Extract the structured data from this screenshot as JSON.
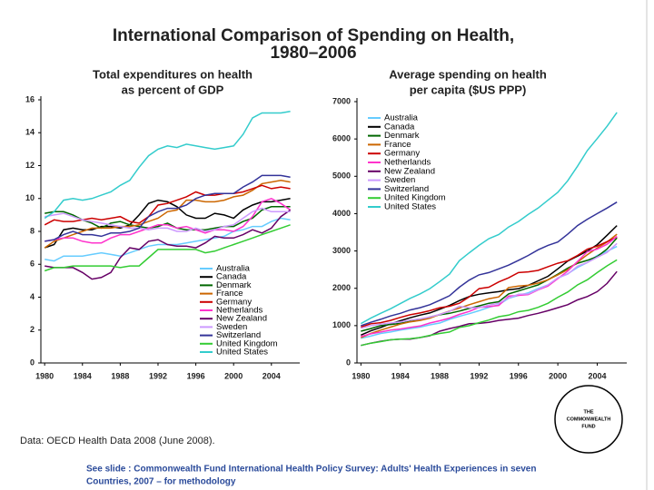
{
  "slide": {
    "title": [
      "International Comparison of Spending on Health,",
      "1980–2006"
    ],
    "source": "Data: OECD Health Data 2008 (June 2008).",
    "footnote": [
      "See slide : Commonwealth Fund International Health Policy Survey: Adults' Health Experiences in seven",
      "Countries, 2007 – for methodology"
    ],
    "logo": [
      "THE",
      "COMMONWEALTH",
      "FUND"
    ]
  },
  "chart_data": [
    {
      "type": "line",
      "title": [
        "Total expenditures on health",
        "as percent of GDP"
      ],
      "x": [
        1980,
        1981,
        1982,
        1983,
        1984,
        1985,
        1986,
        1987,
        1988,
        1989,
        1990,
        1991,
        1992,
        1993,
        1994,
        1995,
        1996,
        1997,
        1998,
        1999,
        2000,
        2001,
        2002,
        2003,
        2004,
        2005,
        2006
      ],
      "xlim": [
        1979.6,
        2007
      ],
      "xticks": [
        1980,
        1984,
        1988,
        1992,
        1996,
        2000,
        2004
      ],
      "ylim": [
        0,
        16
      ],
      "yticks": [
        0,
        2,
        4,
        6,
        8,
        10,
        12,
        14,
        16
      ],
      "legend": "lower right",
      "series": [
        {
          "name": "Australia",
          "color": "#66ccff",
          "values": [
            6.3,
            6.2,
            6.5,
            6.5,
            6.5,
            6.6,
            6.7,
            6.6,
            6.5,
            6.7,
            6.9,
            7.1,
            7.2,
            7.2,
            7.2,
            7.3,
            7.4,
            7.5,
            7.6,
            7.7,
            8.0,
            8.1,
            8.3,
            8.3,
            8.6,
            8.8,
            8.7
          ]
        },
        {
          "name": "Canada",
          "color": "#000000",
          "values": [
            7.0,
            7.2,
            8.1,
            8.2,
            8.1,
            8.1,
            8.3,
            8.3,
            8.2,
            8.4,
            9.0,
            9.7,
            9.9,
            9.8,
            9.5,
            9.0,
            8.8,
            8.8,
            9.1,
            9.0,
            8.8,
            9.3,
            9.6,
            9.8,
            9.8,
            9.9,
            10.0
          ]
        },
        {
          "name": "Denmark",
          "color": "#006600",
          "values": [
            9.1,
            9.2,
            9.2,
            9.0,
            8.7,
            8.5,
            8.2,
            8.5,
            8.6,
            8.4,
            8.3,
            8.2,
            8.3,
            8.5,
            8.2,
            8.1,
            8.1,
            8.1,
            8.2,
            8.3,
            8.3,
            8.6,
            8.8,
            9.3,
            9.5,
            9.5,
            9.5
          ]
        },
        {
          "name": "France",
          "color": "#cc6600",
          "values": [
            7.0,
            7.4,
            7.6,
            7.8,
            8.0,
            8.2,
            8.2,
            8.2,
            8.3,
            8.3,
            8.4,
            8.6,
            8.8,
            9.2,
            9.3,
            9.9,
            9.9,
            9.8,
            9.8,
            9.9,
            10.1,
            10.2,
            10.5,
            10.9,
            11.0,
            11.1,
            11.0
          ]
        },
        {
          "name": "Germany",
          "color": "#cc0000",
          "values": [
            8.4,
            8.7,
            8.6,
            8.6,
            8.7,
            8.8,
            8.7,
            8.8,
            8.9,
            8.6,
            8.5,
            8.9,
            9.6,
            9.7,
            9.9,
            10.1,
            10.4,
            10.2,
            10.2,
            10.3,
            10.3,
            10.4,
            10.6,
            10.8,
            10.6,
            10.7,
            10.6
          ]
        },
        {
          "name": "Netherlands",
          "color": "#ff33cc",
          "values": [
            7.4,
            7.5,
            7.6,
            7.6,
            7.4,
            7.3,
            7.3,
            7.6,
            7.8,
            7.8,
            8.0,
            8.2,
            8.4,
            8.4,
            8.2,
            8.3,
            8.1,
            7.9,
            8.1,
            8.1,
            8.0,
            8.3,
            8.9,
            9.8,
            10.0,
            9.7,
            9.3
          ]
        },
        {
          "name": "New Zealand",
          "color": "#660066",
          "values": [
            5.9,
            5.8,
            5.8,
            5.8,
            5.5,
            5.1,
            5.2,
            5.5,
            6.4,
            7.0,
            6.9,
            7.4,
            7.5,
            7.2,
            7.1,
            7.1,
            7.0,
            7.3,
            7.7,
            7.6,
            7.6,
            7.8,
            8.1,
            7.9,
            8.2,
            8.9,
            9.3
          ]
        },
        {
          "name": "Sweden",
          "color": "#cc99ff",
          "values": [
            8.9,
            9.0,
            9.1,
            8.9,
            8.7,
            8.6,
            8.5,
            8.4,
            8.3,
            8.2,
            8.2,
            8.1,
            8.2,
            8.2,
            8.0,
            8.0,
            8.2,
            8.0,
            8.1,
            8.3,
            8.4,
            8.8,
            9.2,
            9.4,
            9.2,
            9.2,
            9.2
          ]
        },
        {
          "name": "Switzerland",
          "color": "#333399",
          "values": [
            7.4,
            7.5,
            7.8,
            8.0,
            7.8,
            7.8,
            7.7,
            7.9,
            7.9,
            8.0,
            8.2,
            8.9,
            9.2,
            9.4,
            9.4,
            9.6,
            10.0,
            10.2,
            10.3,
            10.3,
            10.3,
            10.7,
            11.0,
            11.4,
            11.4,
            11.4,
            11.3
          ]
        },
        {
          "name": "United Kingdom",
          "color": "#33cc33",
          "values": [
            5.6,
            5.8,
            5.8,
            5.9,
            5.9,
            5.9,
            5.9,
            5.9,
            5.8,
            5.9,
            5.9,
            6.4,
            6.9,
            6.9,
            6.9,
            6.9,
            6.9,
            6.7,
            6.8,
            7.0,
            7.2,
            7.4,
            7.6,
            7.8,
            8.0,
            8.2,
            8.4
          ]
        },
        {
          "name": "United States",
          "color": "#33cccc",
          "values": [
            8.8,
            9.2,
            9.9,
            10.0,
            9.9,
            10.0,
            10.2,
            10.4,
            10.8,
            11.1,
            11.9,
            12.6,
            13.0,
            13.2,
            13.1,
            13.3,
            13.2,
            13.1,
            13.0,
            13.1,
            13.2,
            13.9,
            14.9,
            15.2,
            15.2,
            15.2,
            15.3
          ]
        }
      ]
    },
    {
      "type": "line",
      "title": [
        "Average spending on health",
        "per capita ($US PPP)"
      ],
      "x": [
        1980,
        1981,
        1982,
        1983,
        1984,
        1985,
        1986,
        1987,
        1988,
        1989,
        1990,
        1991,
        1992,
        1993,
        1994,
        1995,
        1996,
        1997,
        1998,
        1999,
        2000,
        2001,
        2002,
        2003,
        2004,
        2005,
        2006
      ],
      "xlim": [
        1979.6,
        2007
      ],
      "xticks": [
        1980,
        1984,
        1988,
        1992,
        1996,
        2000,
        2004
      ],
      "ylim": [
        0,
        7000
      ],
      "yticks": [
        0,
        1000,
        2000,
        3000,
        4000,
        5000,
        6000,
        7000
      ],
      "legend": "upper left",
      "series": [
        {
          "name": "Australia",
          "color": "#66ccff",
          "values": [
            660,
            720,
            790,
            830,
            880,
            920,
            960,
            1020,
            1070,
            1170,
            1250,
            1320,
            1400,
            1490,
            1560,
            1730,
            1810,
            1880,
            1990,
            2090,
            2270,
            2390,
            2560,
            2690,
            2880,
            2990,
            3120
          ]
        },
        {
          "name": "Canada",
          "color": "#000000",
          "values": [
            745,
            860,
            950,
            1050,
            1130,
            1210,
            1280,
            1340,
            1440,
            1540,
            1670,
            1780,
            1840,
            1880,
            1910,
            1960,
            1990,
            2080,
            2200,
            2320,
            2520,
            2730,
            2860,
            3000,
            3170,
            3420,
            3680
          ]
        },
        {
          "name": "Denmark",
          "color": "#006600",
          "values": [
            850,
            920,
            1000,
            1030,
            1060,
            1110,
            1150,
            1230,
            1290,
            1330,
            1390,
            1460,
            1530,
            1600,
            1640,
            1850,
            1930,
            2010,
            2090,
            2230,
            2380,
            2540,
            2670,
            2750,
            2850,
            3050,
            3350
          ]
        },
        {
          "name": "France",
          "color": "#cc6600",
          "values": [
            680,
            790,
            880,
            960,
            1040,
            1100,
            1140,
            1200,
            1300,
            1390,
            1470,
            1560,
            1640,
            1720,
            1770,
            2020,
            2060,
            2080,
            2140,
            2230,
            2360,
            2500,
            2700,
            2900,
            3080,
            3240,
            3450
          ]
        },
        {
          "name": "Germany",
          "color": "#cc0000",
          "values": [
            960,
            1050,
            1080,
            1140,
            1220,
            1290,
            1340,
            1400,
            1480,
            1520,
            1600,
            1770,
            1990,
            2030,
            2170,
            2280,
            2420,
            2440,
            2480,
            2580,
            2670,
            2740,
            2880,
            3050,
            3130,
            3250,
            3370
          ]
        },
        {
          "name": "Netherlands",
          "color": "#ff33cc",
          "values": [
            710,
            780,
            830,
            880,
            910,
            950,
            990,
            1070,
            1130,
            1200,
            1300,
            1380,
            1490,
            1510,
            1540,
            1790,
            1810,
            1830,
            1960,
            2060,
            2260,
            2460,
            2720,
            2980,
            3050,
            3180,
            3390
          ]
        },
        {
          "name": "New Zealand",
          "color": "#660066",
          "values": [
            470,
            530,
            580,
            620,
            640,
            640,
            680,
            730,
            850,
            920,
            980,
            1050,
            1060,
            1090,
            1140,
            1170,
            1200,
            1270,
            1330,
            1400,
            1480,
            1560,
            1690,
            1780,
            1910,
            2130,
            2450
          ]
        },
        {
          "name": "Sweden",
          "color": "#cc99ff",
          "values": [
            930,
            1000,
            1040,
            1070,
            1100,
            1150,
            1180,
            1230,
            1300,
            1380,
            1520,
            1480,
            1480,
            1550,
            1600,
            1740,
            1840,
            1850,
            1970,
            2090,
            2280,
            2380,
            2590,
            2690,
            2830,
            2960,
            3200
          ]
        },
        {
          "name": "Switzerland",
          "color": "#333399",
          "values": [
            1000,
            1090,
            1170,
            1260,
            1330,
            1420,
            1480,
            1560,
            1680,
            1800,
            2030,
            2220,
            2360,
            2420,
            2520,
            2620,
            2750,
            2880,
            3030,
            3150,
            3240,
            3450,
            3680,
            3850,
            4000,
            4150,
            4310
          ]
        },
        {
          "name": "United Kingdom",
          "color": "#33cc33",
          "values": [
            470,
            530,
            570,
            620,
            640,
            650,
            680,
            740,
            790,
            830,
            950,
            1000,
            1080,
            1150,
            1240,
            1280,
            1370,
            1410,
            1490,
            1600,
            1760,
            1900,
            2090,
            2230,
            2420,
            2600,
            2760
          ]
        },
        {
          "name": "United States",
          "color": "#33cccc",
          "values": [
            1055,
            1200,
            1330,
            1450,
            1590,
            1730,
            1850,
            1990,
            2180,
            2380,
            2740,
            2950,
            3150,
            3330,
            3440,
            3640,
            3790,
            3980,
            4150,
            4360,
            4570,
            4880,
            5270,
            5690,
            6010,
            6340,
            6710
          ]
        }
      ]
    }
  ]
}
